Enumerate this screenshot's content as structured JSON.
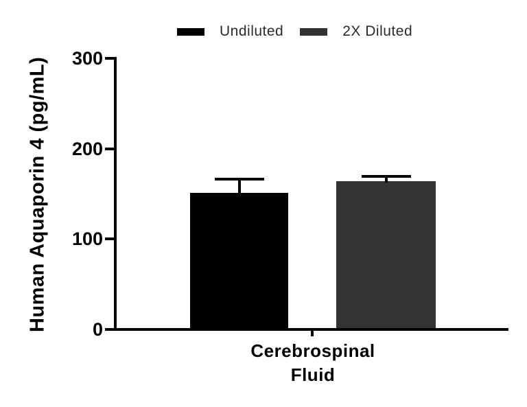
{
  "figure": {
    "background": "#ffffff",
    "axis_color": "#000000"
  },
  "legend": {
    "items": [
      {
        "label": "Undiluted",
        "color": "#000000"
      },
      {
        "label": "2X Diluted",
        "color": "#333333"
      }
    ]
  },
  "chart_data": {
    "type": "bar",
    "title": "",
    "xlabel": "",
    "ylabel": "Human Aquaporin 4 (pg/mL)",
    "categories": [
      "Cerebrospinal Fluid"
    ],
    "category_label_lines": [
      "Cerebrospinal",
      "Fluid"
    ],
    "series": [
      {
        "name": "Undiluted",
        "color": "#000000",
        "values": [
          151
        ],
        "error_plus": [
          15
        ]
      },
      {
        "name": "2X Diluted",
        "color": "#333333",
        "values": [
          164
        ],
        "error_plus": [
          5
        ]
      }
    ],
    "ylim": [
      0,
      300
    ],
    "yticks": [
      0,
      100,
      200,
      300
    ],
    "ytick_labels": [
      "0",
      "100",
      "200",
      "300"
    ],
    "grid": false,
    "legend_position": "top",
    "error_bar_color": "#000000"
  }
}
